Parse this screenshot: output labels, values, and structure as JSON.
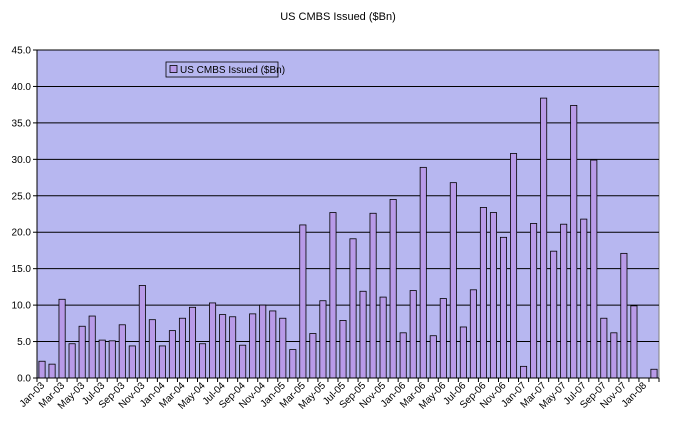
{
  "chart_data": {
    "type": "bar",
    "title": "US CMBS Issued ($Bn)",
    "xlabel": "",
    "ylabel": "",
    "ylim": [
      0,
      45
    ],
    "yticks": [
      "0.0",
      "5.0",
      "10.0",
      "15.0",
      "20.0",
      "25.0",
      "30.0",
      "35.0",
      "40.0",
      "45.0"
    ],
    "grid": "horizontal",
    "legend_position": "top-left",
    "categories": [
      "Jan-03",
      "Feb-03",
      "Mar-03",
      "Apr-03",
      "May-03",
      "Jun-03",
      "Jul-03",
      "Aug-03",
      "Sep-03",
      "Oct-03",
      "Nov-03",
      "Dec-03",
      "Jan-04",
      "Feb-04",
      "Mar-04",
      "Apr-04",
      "May-04",
      "Jun-04",
      "Jul-04",
      "Aug-04",
      "Sep-04",
      "Oct-04",
      "Nov-04",
      "Dec-04",
      "Jan-05",
      "Feb-05",
      "Mar-05",
      "Apr-05",
      "May-05",
      "Jun-05",
      "Jul-05",
      "Aug-05",
      "Sep-05",
      "Oct-05",
      "Nov-05",
      "Dec-05",
      "Jan-06",
      "Feb-06",
      "Mar-06",
      "Apr-06",
      "May-06",
      "Jun-06",
      "Jul-06",
      "Aug-06",
      "Sep-06",
      "Oct-06",
      "Nov-06",
      "Dec-06",
      "Jan-07",
      "Feb-07",
      "Mar-07",
      "Apr-07",
      "May-07",
      "Jun-07",
      "Jul-07",
      "Aug-07",
      "Sep-07",
      "Oct-07",
      "Nov-07",
      "Dec-07",
      "Jan-08",
      "Feb-08"
    ],
    "series": [
      {
        "name": "US CMBS Issued ($Bn)",
        "values": [
          2.3,
          1.9,
          10.8,
          4.7,
          7.1,
          8.5,
          5.2,
          5.1,
          7.3,
          4.4,
          12.7,
          8.0,
          4.4,
          6.5,
          8.2,
          9.7,
          4.7,
          10.3,
          8.7,
          8.4,
          4.5,
          8.8,
          10.0,
          9.2,
          8.2,
          3.9,
          21.0,
          6.1,
          10.6,
          22.7,
          7.9,
          19.1,
          11.9,
          22.6,
          11.1,
          24.5,
          6.2,
          12.0,
          28.9,
          5.8,
          10.9,
          26.8,
          7.0,
          12.1,
          23.4,
          22.7,
          19.3,
          30.8,
          1.6,
          21.2,
          38.4,
          17.4,
          21.1,
          37.4,
          21.8,
          29.9,
          8.2,
          6.2,
          17.1,
          9.9,
          0.0,
          1.2
        ]
      }
    ],
    "colors": {
      "plot_bg": "#b7b7f0",
      "bar_fill": "#b89ae8",
      "bar_stroke": "#000000",
      "grid": "#000000"
    }
  }
}
